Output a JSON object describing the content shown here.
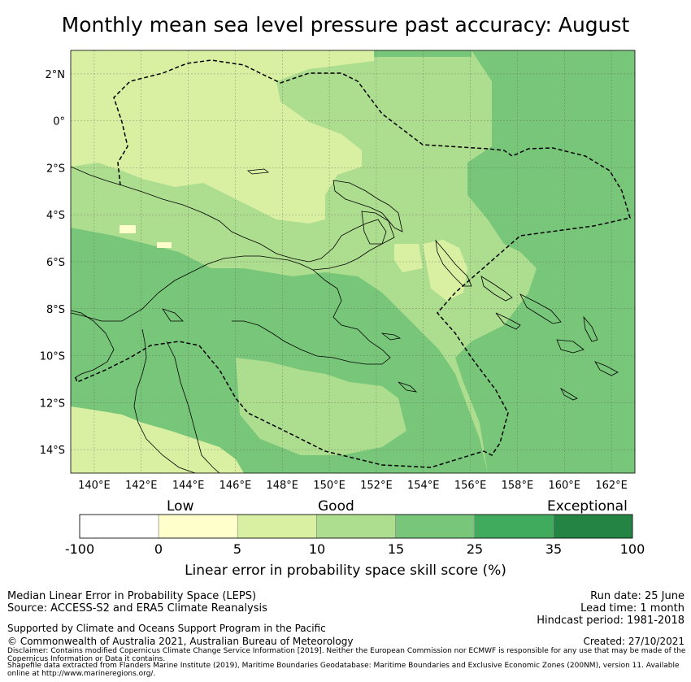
{
  "title": "Monthly mean sea level pressure past accuracy: August",
  "map": {
    "lon_range": [
      139,
      163
    ],
    "lat_range": [
      -15,
      3
    ],
    "lon_ticks": [
      {
        "value": 140,
        "label": "140°E"
      },
      {
        "value": 142,
        "label": "142°E"
      },
      {
        "value": 144,
        "label": "144°E"
      },
      {
        "value": 146,
        "label": "146°E"
      },
      {
        "value": 148,
        "label": "148°E"
      },
      {
        "value": 150,
        "label": "150°E"
      },
      {
        "value": 152,
        "label": "152°E"
      },
      {
        "value": 154,
        "label": "154°E"
      },
      {
        "value": 156,
        "label": "156°E"
      },
      {
        "value": 158,
        "label": "158°E"
      },
      {
        "value": 160,
        "label": "160°E"
      },
      {
        "value": 162,
        "label": "162°E"
      }
    ],
    "lat_ticks": [
      {
        "value": 2,
        "label": "2°N"
      },
      {
        "value": 0,
        "label": "0°"
      },
      {
        "value": -2,
        "label": "2°S"
      },
      {
        "value": -4,
        "label": "4°S"
      },
      {
        "value": -6,
        "label": "6°S"
      },
      {
        "value": -8,
        "label": "8°S"
      },
      {
        "value": -10,
        "label": "10°S"
      },
      {
        "value": -12,
        "label": "12°S"
      },
      {
        "value": -14,
        "label": "14°S"
      }
    ],
    "grid": true,
    "class_colors": {
      "low": "#ffffcc",
      "good_low": "#d9f0a3",
      "good_high": "#addd8e",
      "good_top": "#78c679",
      "exceptional_low": "#41ab5d",
      "exceptional_high": "#238443"
    }
  },
  "colorbar": {
    "categories": [
      "Low",
      "Good",
      "Exceptional"
    ],
    "tick_labels": [
      "-100",
      "0",
      "5",
      "10",
      "15",
      "25",
      "35",
      "100"
    ],
    "colors": [
      "#ffffff",
      "#ffffcc",
      "#d9f0a3",
      "#addd8e",
      "#78c679",
      "#41ab5d",
      "#238443"
    ],
    "label": "Linear error in probability space skill score (%)"
  },
  "footer": {
    "left_line1": "Median Linear Error in Probability Space (LEPS)",
    "left_line2": "Source: ACCESS-S2 and ERA5 Climate Reanalysis",
    "supported": "Supported by Climate and Oceans Support Program in the Pacific",
    "copyright": "© Commonwealth of Australia 2021, Australian Bureau of Meteorology",
    "disclaimer": "Disclaimer: Contains modified Copernicus Climate Change Service Information [2019]. Neither the European Commission nor ECMWF is responsible for any use that may be made of the Copernicus Information or Data it contains.",
    "shapefile": "Shapefile data extracted from Flanders Marine Institute (2019), Maritime Boundaries Geodatabase: Maritime Boundaries and Exclusive Economic Zones (200NM), version 11. Available online at http://www.marineregions.org/.",
    "run_date": "Run date: 25 June",
    "lead_time": "Lead time: 1 month",
    "hindcast": "Hindcast period: 1981-2018",
    "created": "Created: 27/10/2021"
  }
}
